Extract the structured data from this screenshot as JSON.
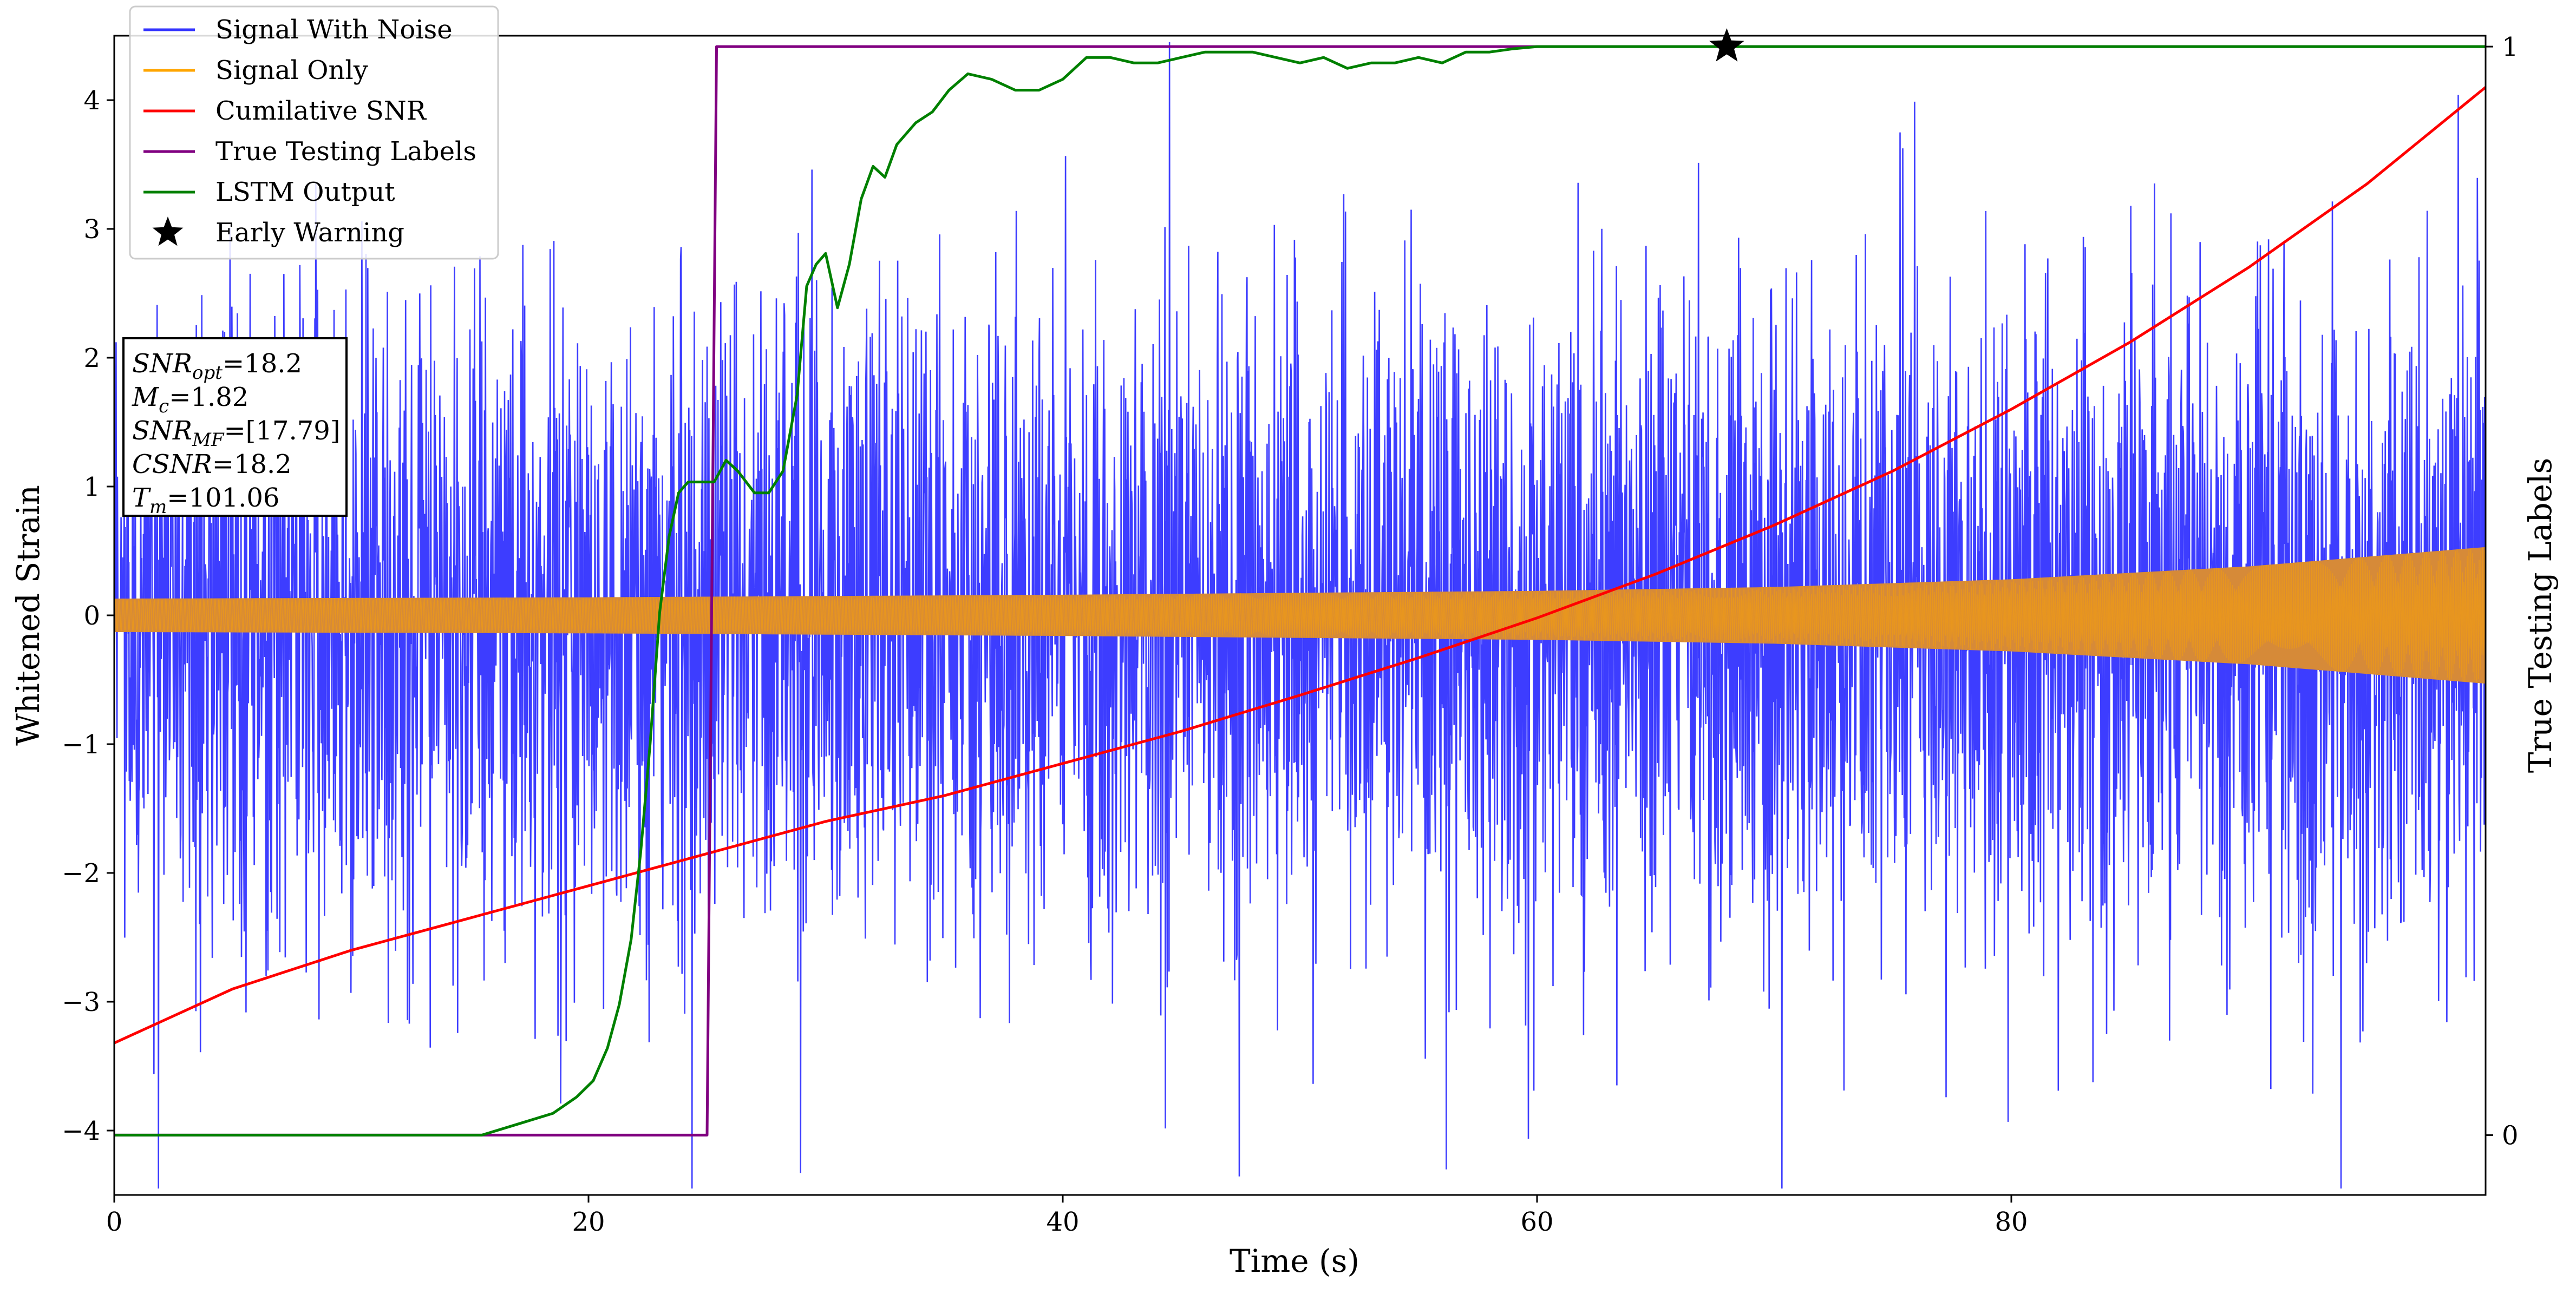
{
  "chart_data": {
    "type": "line",
    "xlabel": "Time (s)",
    "ylabel": "Whitened Strain",
    "y2label": "True Testing Labels",
    "xlim": [
      0,
      100
    ],
    "ylim": [
      -4.5,
      4.5
    ],
    "y2lim": [
      -0.055,
      1.01
    ],
    "xticks": [
      0,
      20,
      40,
      60,
      80
    ],
    "yticks": [
      -4,
      -3,
      -2,
      -1,
      0,
      1,
      2,
      3,
      4
    ],
    "y2ticks": [
      0,
      1
    ],
    "grid": false,
    "legend_position": "top-left",
    "series": [
      {
        "name": "Signal With Noise",
        "axis": "left",
        "color": "#3333ff",
        "description_points": "dense noisy strain, |peaks| up to about 4.1, core amplitude about 0.5 to 3"
      },
      {
        "name": "Signal Only",
        "axis": "left",
        "color": "#ffa500",
        "envelope": {
          "x": [
            0,
            20,
            40,
            60,
            70,
            80,
            90,
            100
          ],
          "amp": [
            0.13,
            0.14,
            0.16,
            0.19,
            0.22,
            0.28,
            0.38,
            0.53
          ]
        }
      },
      {
        "name": "Cumilative SNR",
        "axis": "left",
        "color": "#ff0000",
        "x": [
          0,
          5,
          10,
          15,
          20,
          25,
          30,
          35,
          40,
          45,
          50,
          55,
          60,
          65,
          70,
          75,
          80,
          85,
          90,
          95,
          100
        ],
        "y": [
          -3.32,
          -2.9,
          -2.6,
          -2.35,
          -2.1,
          -1.85,
          -1.6,
          -1.4,
          -1.15,
          -0.9,
          -0.62,
          -0.33,
          -0.02,
          0.32,
          0.7,
          1.12,
          1.6,
          2.12,
          2.7,
          3.35,
          4.1
        ]
      },
      {
        "name": "True Testing Labels",
        "axis": "right",
        "color": "#800080",
        "x": [
          0,
          25.0,
          25.4,
          100
        ],
        "y": [
          0,
          0,
          1,
          1
        ]
      },
      {
        "name": "LSTM Output",
        "axis": "right",
        "color": "#008000",
        "x": [
          0,
          15.5,
          17,
          18.5,
          19.5,
          20.2,
          20.8,
          21.3,
          21.8,
          22.2,
          22.6,
          23.0,
          23.4,
          23.8,
          24.2,
          24.8,
          25.3,
          25.8,
          26.3,
          27.0,
          27.6,
          28.2,
          28.8,
          29.2,
          29.6,
          30.0,
          30.5,
          31.0,
          31.5,
          32.0,
          32.5,
          33.0,
          33.8,
          34.5,
          35.2,
          36.0,
          37.0,
          38.0,
          39.0,
          40.0,
          41.0,
          42.0,
          43.0,
          44.0,
          45.0,
          46.0,
          48.0,
          50.0,
          51.0,
          52.0,
          53.0,
          54.0,
          55.0,
          56.0,
          57.0,
          58.0,
          59.0,
          60.0,
          62.0,
          65.0,
          70.0,
          80.0,
          90.0,
          100.0
        ],
        "y": [
          0,
          0,
          0.01,
          0.02,
          0.035,
          0.05,
          0.08,
          0.12,
          0.18,
          0.26,
          0.36,
          0.48,
          0.55,
          0.59,
          0.6,
          0.6,
          0.6,
          0.62,
          0.61,
          0.59,
          0.59,
          0.61,
          0.68,
          0.78,
          0.8,
          0.81,
          0.76,
          0.8,
          0.86,
          0.89,
          0.88,
          0.91,
          0.93,
          0.94,
          0.96,
          0.975,
          0.97,
          0.96,
          0.96,
          0.97,
          0.99,
          0.99,
          0.985,
          0.985,
          0.99,
          0.995,
          0.995,
          0.985,
          0.99,
          0.98,
          0.985,
          0.985,
          0.99,
          0.985,
          0.995,
          0.995,
          0.998,
          1.0,
          1.0,
          1.0,
          1.0,
          1.0,
          1.0,
          1.0
        ]
      },
      {
        "name": "Early Warning",
        "axis": "right",
        "color": "#000000",
        "marker": "star",
        "x": [
          68.0
        ],
        "y": [
          1.0
        ]
      }
    ],
    "annotation_box": {
      "lines": [
        {
          "base": "SNR",
          "sub": "opt",
          "text": "=18.2"
        },
        {
          "base": "M",
          "sub": "c",
          "text": "=1.82"
        },
        {
          "base": "SNR",
          "sub": "MF",
          "text": "=[17.79]"
        },
        {
          "base": "CSNR",
          "sub": "",
          "text": "=18.2"
        },
        {
          "base": "T",
          "sub": "m",
          "text": "=101.06"
        }
      ]
    }
  }
}
